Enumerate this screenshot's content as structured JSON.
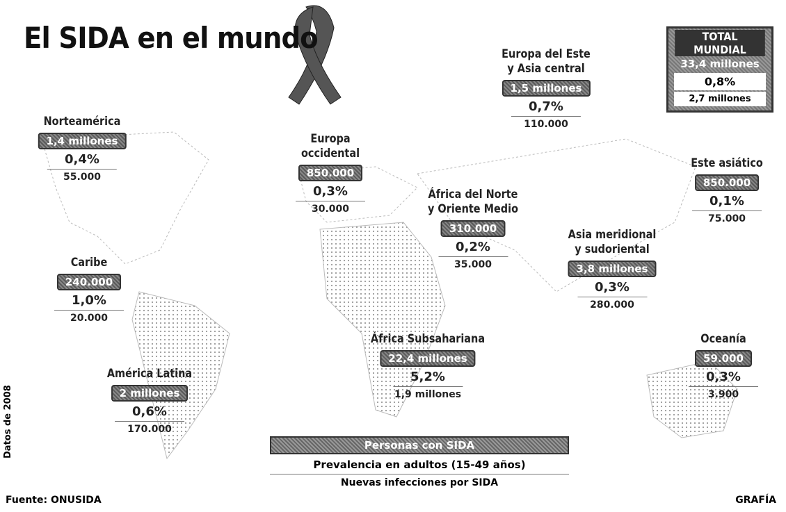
{
  "title": "El SIDA en el mundo",
  "total": {
    "heading": "TOTAL MUNDIAL",
    "people": "33,4 millones",
    "prevalence": "0,8%",
    "new_infections": "2,7 millones"
  },
  "regions": [
    {
      "name": [
        "Norteamérica"
      ],
      "people": "1,4 millones",
      "prevalence": "0,4%",
      "new_infections": "55.000"
    },
    {
      "name": [
        "Caribe"
      ],
      "people": "240.000",
      "prevalence": "1,0%",
      "new_infections": "20.000"
    },
    {
      "name": [
        "América Latina"
      ],
      "people": "2 millones",
      "prevalence": "0,6%",
      "new_infections": "170.000"
    },
    {
      "name": [
        "Europa",
        "occidental"
      ],
      "people": "850.000",
      "prevalence": "0,3%",
      "new_infections": "30.000"
    },
    {
      "name": [
        "Europa del Este",
        "y Asia central"
      ],
      "people": "1,5 millones",
      "prevalence": "0,7%",
      "new_infections": "110.000"
    },
    {
      "name": [
        "África del Norte",
        "y Oriente Medio"
      ],
      "people": "310.000",
      "prevalence": "0,2%",
      "new_infections": "35.000"
    },
    {
      "name": [
        "África Subsahariana"
      ],
      "people": "22,4 millones",
      "prevalence": "5,2%",
      "new_infections": "1,9 millones"
    },
    {
      "name": [
        "Asia meridional",
        "y sudoriental"
      ],
      "people": "3,8 millones",
      "prevalence": "0,3%",
      "new_infections": "280.000"
    },
    {
      "name": [
        "Este asiático"
      ],
      "people": "850.000",
      "prevalence": "0,1%",
      "new_infections": "75.000"
    },
    {
      "name": [
        "Oceanía"
      ],
      "people": "59.000",
      "prevalence": "0,3%",
      "new_infections": "3.900"
    }
  ],
  "legend": {
    "people": "Personas con SIDA",
    "prevalence": "Prevalencia en adultos (15-49 años)",
    "new_infections": "Nuevas infecciones por SIDA"
  },
  "date_note": "Datos de 2008",
  "source": "Fuente: ONUSIDA",
  "credit": "GRAFÍA"
}
